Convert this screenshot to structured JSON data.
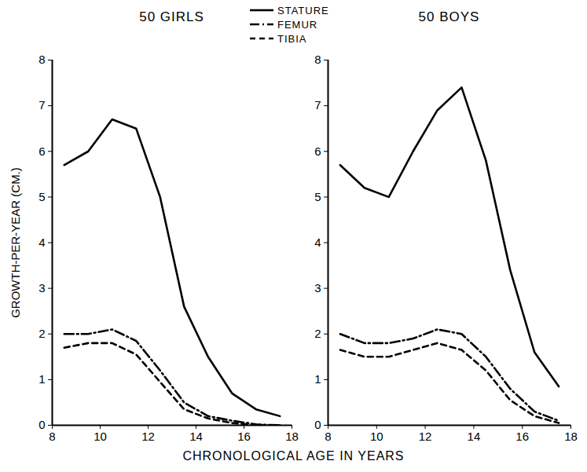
{
  "chart_data": [
    {
      "type": "line",
      "title": "50 GIRLS",
      "x_label": "CHRONOLOGICAL AGE IN YEARS",
      "y_label": "GROWTH-PER-YEAR (CM.)",
      "x": [
        8.5,
        9.5,
        10.5,
        11.5,
        12.5,
        13.5,
        14.5,
        15.5,
        16.5,
        17.5
      ],
      "series": [
        {
          "name": "STATURE",
          "color": "#000000",
          "line_style": "solid",
          "values": [
            5.7,
            6.0,
            6.7,
            6.5,
            5.0,
            2.6,
            1.5,
            0.7,
            0.35,
            0.2
          ]
        },
        {
          "name": "FEMUR",
          "color": "#000000",
          "line_style": "dashdot",
          "values": [
            2.0,
            2.0,
            2.1,
            1.85,
            1.2,
            0.5,
            0.2,
            0.1,
            0.02,
            0.0
          ]
        },
        {
          "name": "TIBIA",
          "color": "#000000",
          "line_style": "dashed",
          "values": [
            1.7,
            1.8,
            1.8,
            1.55,
            0.95,
            0.35,
            0.15,
            0.05,
            0.0,
            0.0
          ]
        }
      ],
      "xlim": [
        8,
        18
      ],
      "xticks": [
        8,
        10,
        12,
        14,
        16,
        18
      ],
      "ylim": [
        0,
        8
      ],
      "yticks": [
        0,
        1,
        2,
        3,
        4,
        5,
        6,
        7,
        8
      ],
      "grid": false,
      "legend": "top"
    },
    {
      "type": "line",
      "title": "50 BOYS",
      "x": [
        8.5,
        9.5,
        10.5,
        11.5,
        12.5,
        13.5,
        14.5,
        15.5,
        16.5,
        17.5
      ],
      "series": [
        {
          "name": "STATURE",
          "color": "#000000",
          "line_style": "solid",
          "values": [
            5.7,
            5.2,
            5.0,
            6.0,
            6.9,
            7.4,
            5.8,
            3.4,
            1.6,
            0.85
          ]
        },
        {
          "name": "FEMUR",
          "color": "#000000",
          "line_style": "dashdot",
          "values": [
            2.0,
            1.8,
            1.8,
            1.9,
            2.1,
            2.0,
            1.5,
            0.8,
            0.3,
            0.1
          ]
        },
        {
          "name": "TIBIA",
          "color": "#000000",
          "line_style": "dashed",
          "values": [
            1.65,
            1.5,
            1.5,
            1.65,
            1.8,
            1.65,
            1.2,
            0.55,
            0.2,
            0.05
          ]
        }
      ],
      "xlim": [
        8,
        18
      ],
      "xticks": [
        8,
        10,
        12,
        14,
        16,
        18
      ],
      "ylim": [
        0,
        8
      ],
      "yticks": [
        0,
        1,
        2,
        3,
        4,
        5,
        6,
        7,
        8
      ],
      "grid": false,
      "legend": "top"
    }
  ]
}
